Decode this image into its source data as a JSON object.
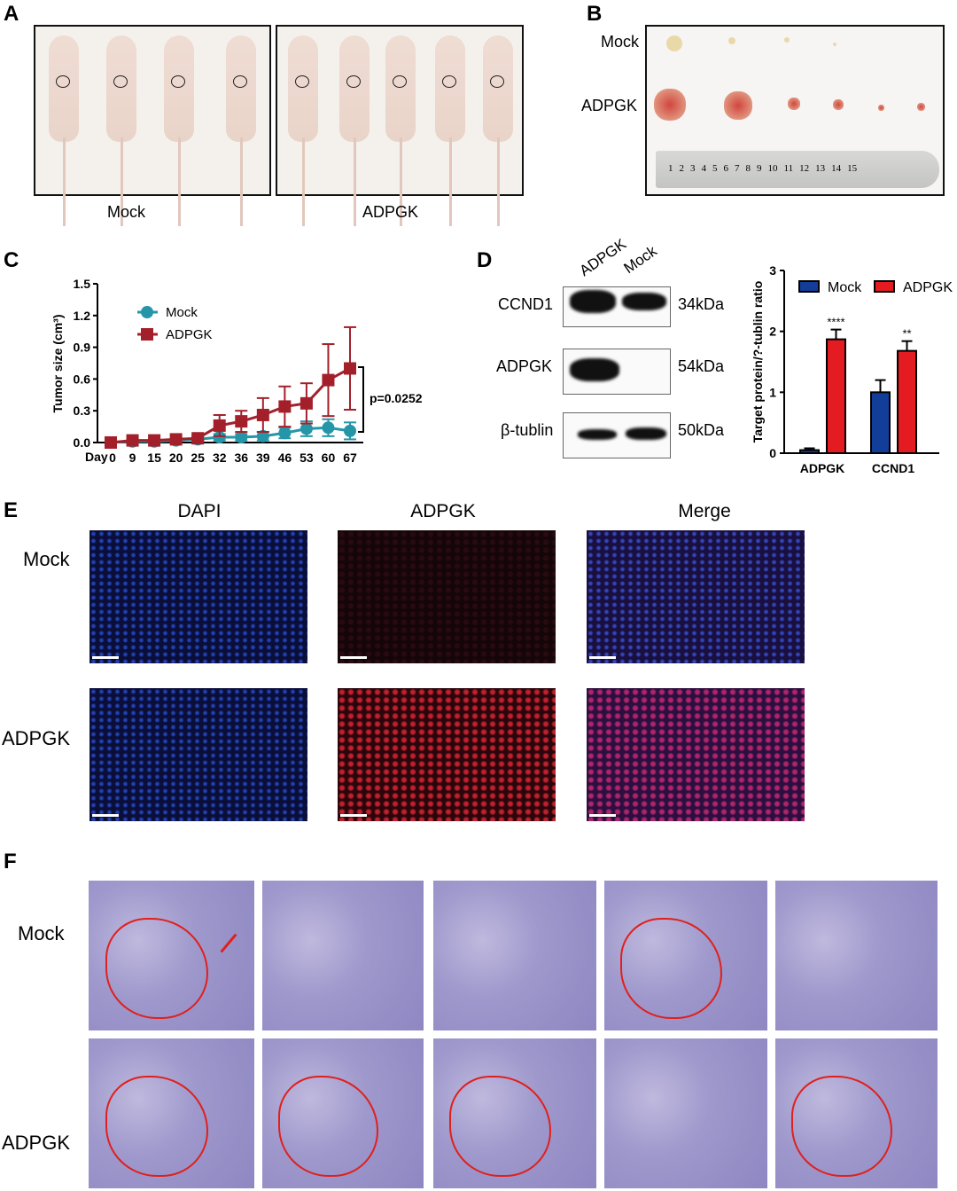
{
  "panels": {
    "A": "A",
    "B": "B",
    "C": "C",
    "D": "D",
    "E": "E",
    "F": "F"
  },
  "panelA": {
    "groups": [
      "Mock",
      "ADPGK"
    ]
  },
  "panelB": {
    "rows": [
      "Mock",
      "ADPGK"
    ],
    "ruler_numbers": [
      "1",
      "2",
      "3",
      "4",
      "5",
      "6",
      "7",
      "8",
      "9",
      "10",
      "11",
      "12",
      "13",
      "14",
      "15"
    ]
  },
  "chart_data": [
    {
      "type": "line",
      "ylabel": "Tumor size (cm³)",
      "xlabel_prefix": "Day",
      "ylim": [
        0,
        1.5
      ],
      "yticks": [
        "0.0",
        "0.3",
        "0.6",
        "0.9",
        "1.2",
        "1.5"
      ],
      "categories": [
        "0",
        "9",
        "15",
        "20",
        "25",
        "32",
        "36",
        "39",
        "46",
        "53",
        "60",
        "67"
      ],
      "series": [
        {
          "name": "Mock",
          "color": "#2596a8",
          "marker": "circle",
          "values": [
            0,
            0.01,
            0.01,
            0.02,
            0.03,
            0.05,
            0.05,
            0.06,
            0.09,
            0.13,
            0.14,
            0.11
          ],
          "errors": [
            0,
            0.01,
            0.01,
            0.01,
            0.02,
            0.03,
            0.03,
            0.04,
            0.05,
            0.07,
            0.08,
            0.08
          ]
        },
        {
          "name": "ADPGK",
          "color": "#a3202a",
          "marker": "square",
          "values": [
            0,
            0.02,
            0.02,
            0.03,
            0.04,
            0.16,
            0.2,
            0.26,
            0.34,
            0.37,
            0.59,
            0.7
          ],
          "errors": [
            0,
            0.01,
            0.01,
            0.01,
            0.02,
            0.1,
            0.1,
            0.16,
            0.19,
            0.19,
            0.34,
            0.39
          ]
        }
      ],
      "annotation": "p=0.0252",
      "legend": "top-left"
    },
    {
      "type": "bar",
      "ylabel": "Target protein/?-tublin ratio",
      "ylim": [
        0,
        3
      ],
      "yticks": [
        "0",
        "1",
        "2",
        "3"
      ],
      "categories": [
        "ADPGK",
        "CCND1"
      ],
      "series": [
        {
          "name": "Mock",
          "color": "#123d99",
          "values": [
            0.05,
            1.0
          ],
          "errors": [
            0.03,
            0.2
          ]
        },
        {
          "name": "ADPGK",
          "color": "#e41c22",
          "values": [
            1.87,
            1.68
          ],
          "errors": [
            0.16,
            0.16
          ]
        }
      ],
      "significance": [
        "****",
        "**"
      ],
      "legend": "top"
    }
  ],
  "panelD": {
    "lanes": [
      "ADPGK",
      "Mock"
    ],
    "proteins": [
      {
        "name": "CCND1",
        "size": "34kDa"
      },
      {
        "name": "ADPGK",
        "size": "54kDa"
      },
      {
        "name": "β-tublin",
        "size": "50kDa"
      }
    ]
  },
  "panelE": {
    "columns": [
      "DAPI",
      "ADPGK",
      "Merge"
    ],
    "rows": [
      "Mock",
      "ADPGK"
    ]
  },
  "panelF": {
    "rows": [
      "Mock",
      "ADPGK"
    ]
  }
}
